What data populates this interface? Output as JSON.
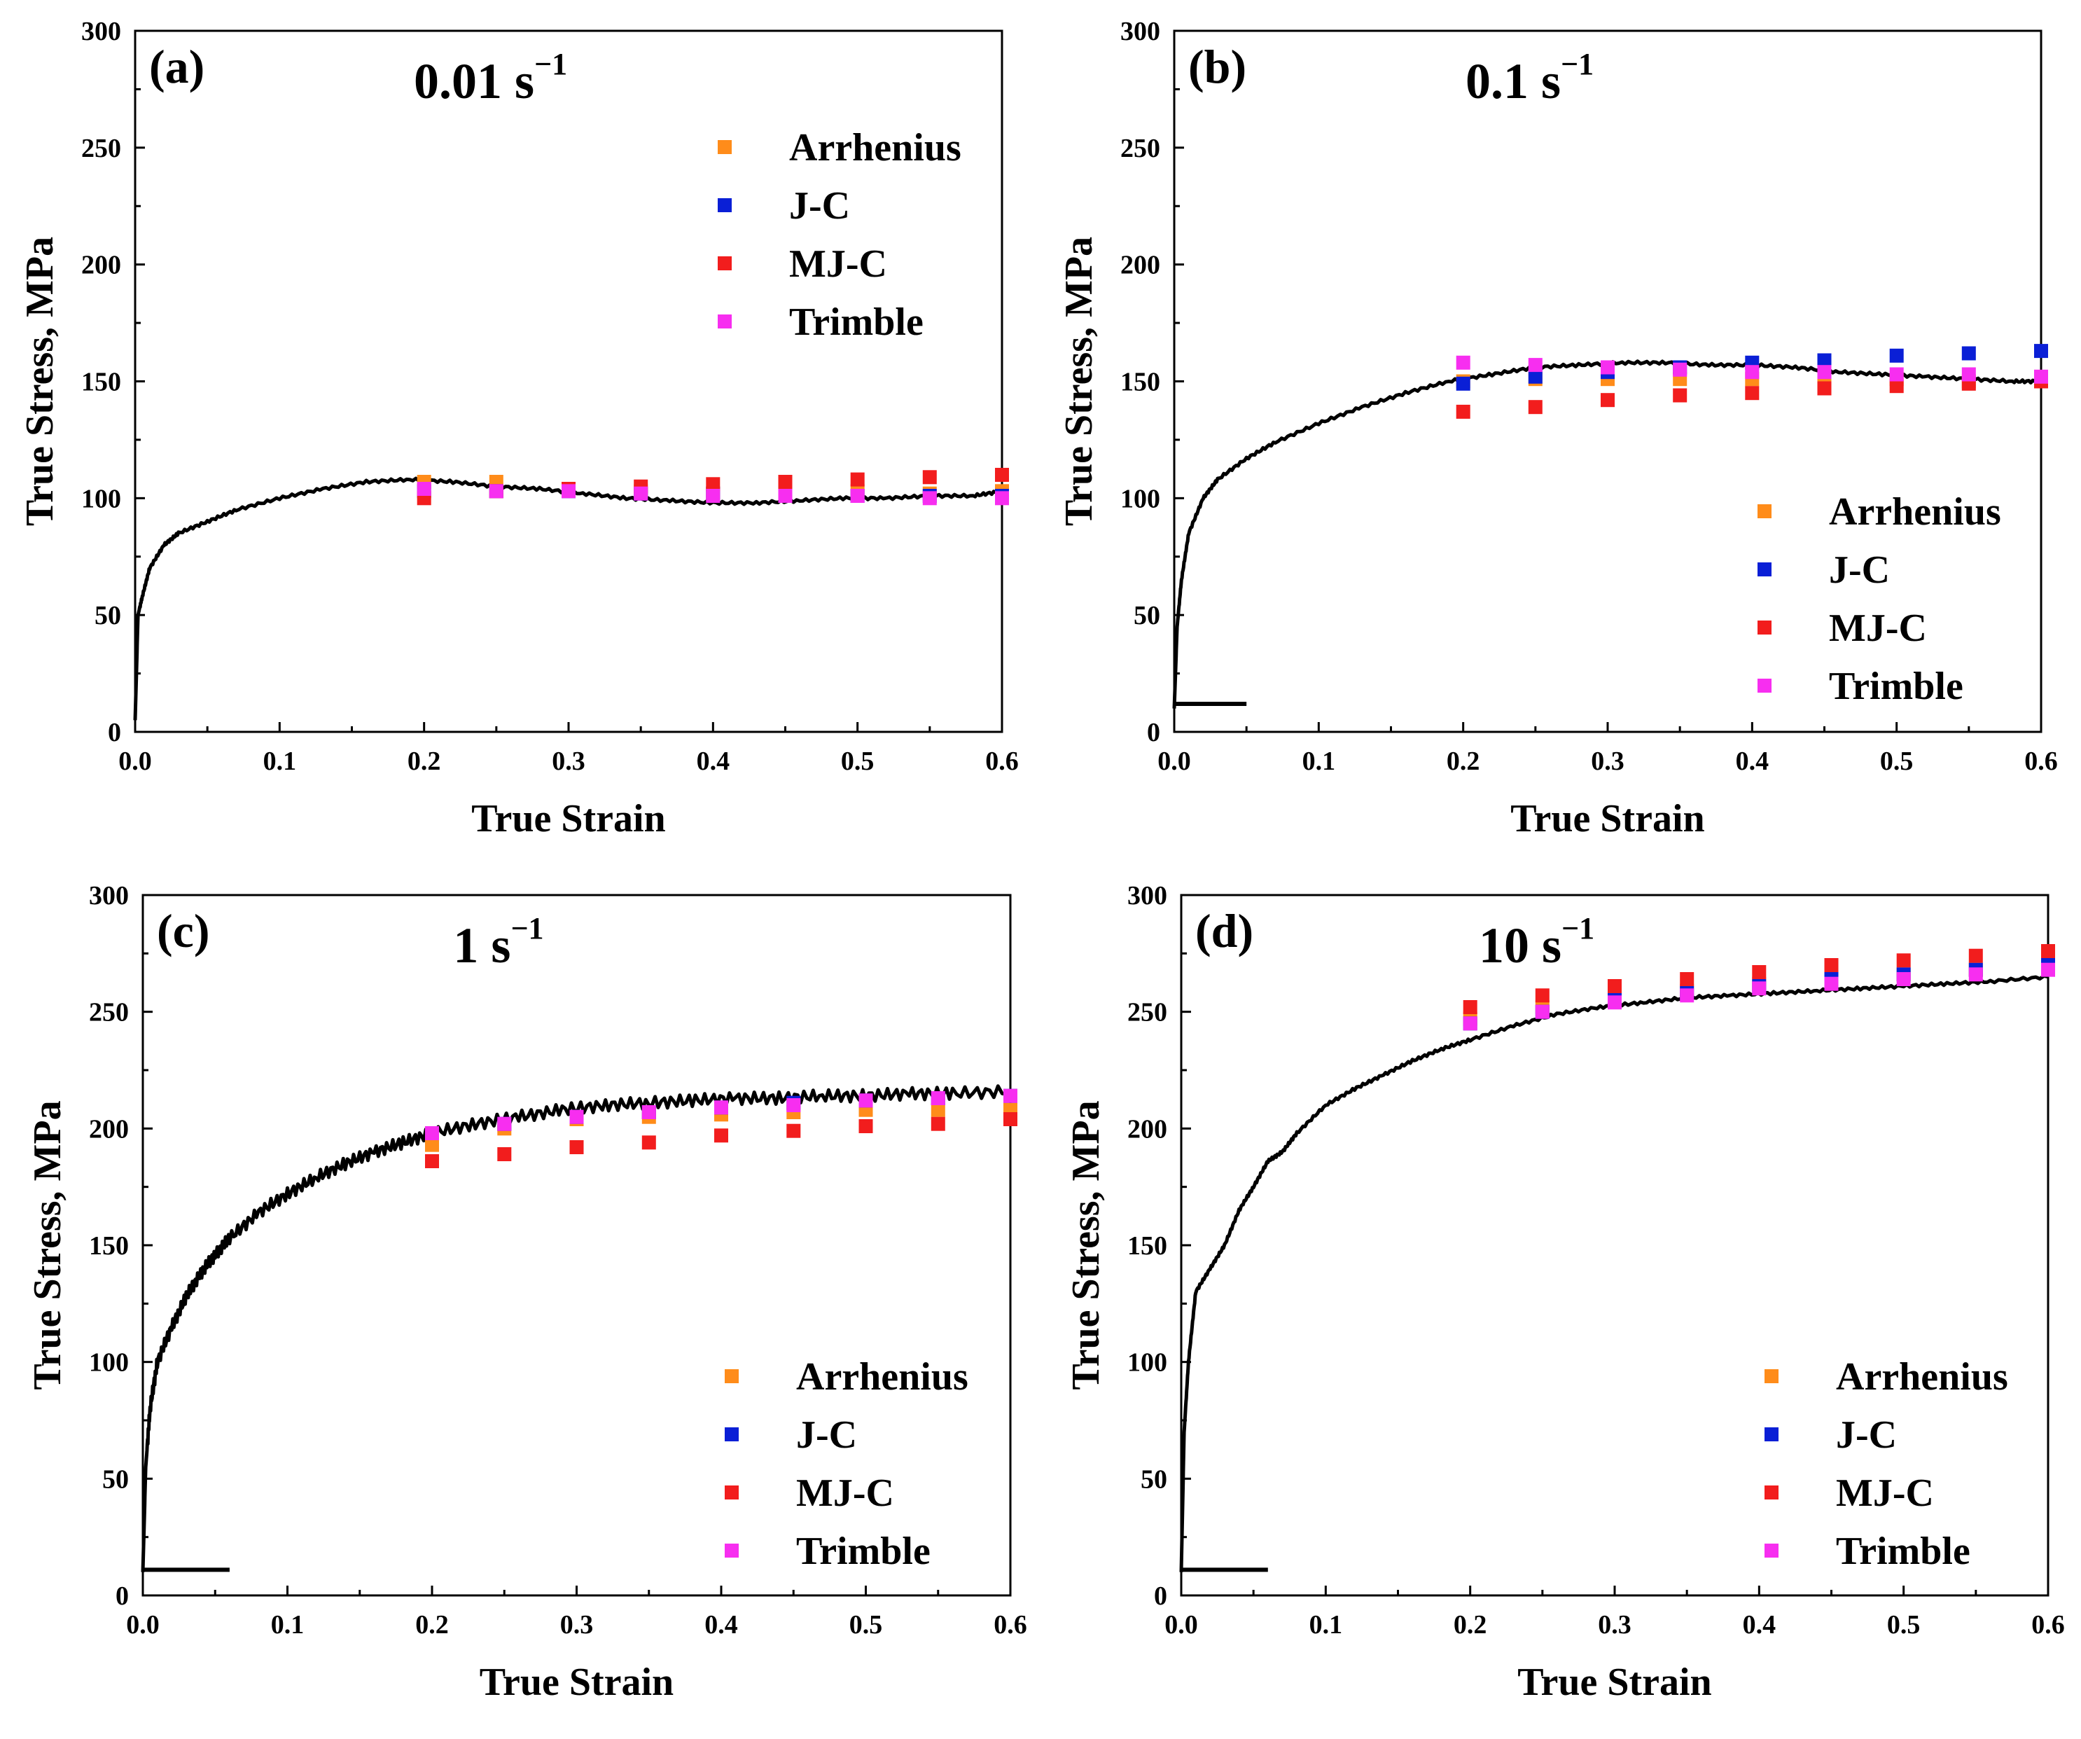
{
  "chart_data": [
    {
      "type": "scatter",
      "panel_label": "(a)",
      "title": "0.01 s",
      "title_superscript": "−1",
      "xlabel": "True Strain",
      "ylabel": "True Stress, MPa",
      "xlim": [
        0,
        0.6
      ],
      "ylim": [
        0,
        300
      ],
      "x_ticks": [
        "0.0",
        "0.1",
        "0.2",
        "0.3",
        "0.4",
        "0.5",
        "0.6"
      ],
      "y_ticks": [
        "0",
        "50",
        "100",
        "150",
        "200",
        "250",
        "300"
      ],
      "legend_position": "top-right",
      "experimental_curve": {
        "x": [
          0,
          0.002,
          0.005,
          0.01,
          0.02,
          0.03,
          0.05,
          0.07,
          0.1,
          0.13,
          0.16,
          0.19,
          0.22,
          0.25,
          0.28,
          0.31,
          0.34,
          0.37,
          0.4,
          0.43,
          0.46,
          0.49,
          0.52,
          0.55,
          0.58,
          0.6
        ],
        "y": [
          5,
          50,
          58,
          70,
          80,
          85,
          90,
          95,
          100,
          104,
          107,
          108,
          107,
          105,
          104,
          102,
          100,
          99,
          98,
          98,
          99,
          100,
          100,
          101,
          101,
          103
        ]
      },
      "series": [
        {
          "name": "Arrhenius",
          "color": "#ff8c1a",
          "x": [
            0.2,
            0.25,
            0.3,
            0.35,
            0.4,
            0.45,
            0.5,
            0.55,
            0.6
          ],
          "y": [
            107,
            107,
            104,
            103,
            102,
            102,
            103,
            102,
            103
          ]
        },
        {
          "name": "J-C",
          "color": "#0a1fd6",
          "x": [
            0.2,
            0.25,
            0.3,
            0.35,
            0.4,
            0.45,
            0.5,
            0.55,
            0.6
          ],
          "y": [
            103,
            103,
            103,
            102,
            102,
            101,
            101,
            101,
            101
          ]
        },
        {
          "name": "MJ-C",
          "color": "#f21d1d",
          "x": [
            0.2,
            0.25,
            0.3,
            0.35,
            0.4,
            0.45,
            0.5,
            0.55,
            0.6
          ],
          "y": [
            100,
            103,
            104,
            105,
            106,
            107,
            108,
            109,
            110
          ]
        },
        {
          "name": "Trimble",
          "color": "#f72ef0",
          "x": [
            0.2,
            0.25,
            0.3,
            0.35,
            0.4,
            0.45,
            0.5,
            0.55,
            0.6
          ],
          "y": [
            104,
            103,
            103,
            102,
            101,
            101,
            101,
            100,
            100
          ]
        }
      ]
    },
    {
      "type": "scatter",
      "panel_label": "(b)",
      "title": "0.1 s",
      "title_superscript": "−1",
      "xlabel": "True Strain",
      "ylabel": "True Stress, MPa",
      "xlim": [
        0,
        0.6
      ],
      "ylim": [
        0,
        300
      ],
      "x_ticks": [
        "0.0",
        "0.1",
        "0.2",
        "0.3",
        "0.4",
        "0.5",
        "0.6"
      ],
      "y_ticks": [
        "0",
        "50",
        "100",
        "150",
        "200",
        "250",
        "300"
      ],
      "legend_position": "bottom-right",
      "experimental_curve": {
        "x": [
          0,
          0.002,
          0.005,
          0.01,
          0.02,
          0.03,
          0.05,
          0.07,
          0.1,
          0.13,
          0.16,
          0.19,
          0.22,
          0.25,
          0.28,
          0.31,
          0.34,
          0.37,
          0.4,
          0.43,
          0.46,
          0.49,
          0.52,
          0.55,
          0.58,
          0.6
        ],
        "y": [
          10,
          45,
          65,
          85,
          100,
          108,
          117,
          124,
          132,
          139,
          145,
          150,
          153,
          156,
          157,
          158,
          158,
          157,
          157,
          156,
          154,
          153,
          152,
          151,
          150,
          150
        ]
      },
      "baseline_segment": {
        "x": [
          0,
          0.05
        ],
        "y": [
          12,
          12
        ]
      },
      "series": [
        {
          "name": "Arrhenius",
          "color": "#ff8c1a",
          "x": [
            0.2,
            0.25,
            0.3,
            0.35,
            0.4,
            0.45,
            0.5,
            0.55,
            0.6
          ],
          "y": [
            150,
            151,
            151,
            151,
            151,
            151,
            151,
            150,
            150
          ]
        },
        {
          "name": "J-C",
          "color": "#0a1fd6",
          "x": [
            0.2,
            0.25,
            0.3,
            0.35,
            0.4,
            0.45,
            0.5,
            0.55,
            0.6
          ],
          "y": [
            149,
            152,
            154,
            156,
            158,
            159,
            161,
            162,
            163
          ]
        },
        {
          "name": "MJ-C",
          "color": "#f21d1d",
          "x": [
            0.2,
            0.25,
            0.3,
            0.35,
            0.4,
            0.45,
            0.5,
            0.55,
            0.6
          ],
          "y": [
            137,
            139,
            142,
            144,
            145,
            147,
            148,
            149,
            150
          ]
        },
        {
          "name": "Trimble",
          "color": "#f72ef0",
          "x": [
            0.2,
            0.25,
            0.3,
            0.35,
            0.4,
            0.45,
            0.5,
            0.55,
            0.6
          ],
          "y": [
            158,
            157,
            156,
            155,
            154,
            154,
            153,
            153,
            152
          ]
        }
      ]
    },
    {
      "type": "scatter",
      "panel_label": "(c)",
      "title": "1 s",
      "title_superscript": "−1",
      "xlabel": "True Strain",
      "ylabel": "True Stress, MPa",
      "xlim": [
        0,
        0.6
      ],
      "ylim": [
        0,
        300
      ],
      "x_ticks": [
        "0.0",
        "0.1",
        "0.2",
        "0.3",
        "0.4",
        "0.5",
        "0.6"
      ],
      "y_ticks": [
        "0",
        "50",
        "100",
        "150",
        "200",
        "250",
        "300"
      ],
      "legend_position": "bottom-right",
      "experimental_curve": {
        "x": [
          0,
          0.002,
          0.005,
          0.01,
          0.02,
          0.03,
          0.04,
          0.05,
          0.06,
          0.08,
          0.1,
          0.12,
          0.14,
          0.16,
          0.18,
          0.2,
          0.23,
          0.26,
          0.29,
          0.32,
          0.35,
          0.38,
          0.41,
          0.44,
          0.47,
          0.5,
          0.53,
          0.56,
          0.6
        ],
        "y": [
          10,
          55,
          80,
          100,
          115,
          128,
          138,
          146,
          153,
          164,
          172,
          179,
          185,
          190,
          194,
          198,
          202,
          205,
          208,
          210,
          211,
          212,
          213,
          213,
          214,
          214,
          215,
          215,
          216
        ]
      },
      "baseline_segment": {
        "x": [
          0,
          0.06
        ],
        "y": [
          11,
          11
        ]
      },
      "series": [
        {
          "name": "Arrhenius",
          "color": "#ff8c1a",
          "x": [
            0.2,
            0.25,
            0.3,
            0.35,
            0.4,
            0.45,
            0.5,
            0.55,
            0.6
          ],
          "y": [
            193,
            200,
            204,
            205,
            206,
            207,
            208,
            208,
            208
          ]
        },
        {
          "name": "J-C",
          "color": "#0a1fd6",
          "x": [
            0.2,
            0.25,
            0.3,
            0.35,
            0.4,
            0.45,
            0.5,
            0.55,
            0.6
          ],
          "y": [
            198,
            202,
            205,
            207,
            209,
            211,
            212,
            213,
            214
          ]
        },
        {
          "name": "MJ-C",
          "color": "#f21d1d",
          "x": [
            0.2,
            0.25,
            0.3,
            0.35,
            0.4,
            0.45,
            0.5,
            0.55,
            0.6
          ],
          "y": [
            186,
            189,
            192,
            194,
            197,
            199,
            201,
            202,
            204
          ]
        },
        {
          "name": "Trimble",
          "color": "#f72ef0",
          "x": [
            0.2,
            0.25,
            0.3,
            0.35,
            0.4,
            0.45,
            0.5,
            0.55,
            0.6
          ],
          "y": [
            198,
            202,
            205,
            207,
            209,
            210,
            212,
            213,
            214
          ]
        }
      ]
    },
    {
      "type": "scatter",
      "panel_label": "(d)",
      "title": "10 s",
      "title_superscript": "−1",
      "xlabel": "True Strain",
      "ylabel": "True Stress, MPa",
      "xlim": [
        0,
        0.6
      ],
      "ylim": [
        0,
        300
      ],
      "x_ticks": [
        "0.0",
        "0.1",
        "0.2",
        "0.3",
        "0.4",
        "0.5",
        "0.6"
      ],
      "y_ticks": [
        "0",
        "50",
        "100",
        "150",
        "200",
        "250",
        "300"
      ],
      "legend_position": "bottom-right",
      "experimental_curve": {
        "x": [
          0,
          0.002,
          0.005,
          0.01,
          0.02,
          0.03,
          0.04,
          0.05,
          0.06,
          0.07,
          0.08,
          0.1,
          0.12,
          0.14,
          0.16,
          0.18,
          0.2,
          0.23,
          0.26,
          0.29,
          0.32,
          0.35,
          0.38,
          0.41,
          0.44,
          0.47,
          0.5,
          0.53,
          0.56,
          0.6
        ],
        "y": [
          10,
          70,
          100,
          130,
          140,
          150,
          165,
          175,
          186,
          190,
          198,
          210,
          217,
          223,
          229,
          234,
          238,
          244,
          249,
          252,
          254,
          256,
          257,
          258,
          259,
          260,
          261,
          262,
          263,
          265
        ]
      },
      "baseline_segment": {
        "x": [
          0,
          0.06
        ],
        "y": [
          11,
          11
        ]
      },
      "series": [
        {
          "name": "Arrhenius",
          "color": "#ff8c1a",
          "x": [
            0.2,
            0.25,
            0.3,
            0.35,
            0.4,
            0.45,
            0.5,
            0.55,
            0.6
          ],
          "y": [
            247,
            252,
            256,
            259,
            262,
            264,
            266,
            268,
            270
          ]
        },
        {
          "name": "J-C",
          "color": "#0a1fd6",
          "x": [
            0.2,
            0.25,
            0.3,
            0.35,
            0.4,
            0.45,
            0.5,
            0.55,
            0.6
          ],
          "y": [
            245,
            250,
            255,
            258,
            261,
            264,
            266,
            268,
            270
          ]
        },
        {
          "name": "MJ-C",
          "color": "#f21d1d",
          "x": [
            0.2,
            0.25,
            0.3,
            0.35,
            0.4,
            0.45,
            0.5,
            0.55,
            0.6
          ],
          "y": [
            252,
            257,
            261,
            264,
            267,
            270,
            272,
            274,
            276
          ]
        },
        {
          "name": "Trimble",
          "color": "#f72ef0",
          "x": [
            0.2,
            0.25,
            0.3,
            0.35,
            0.4,
            0.45,
            0.5,
            0.55,
            0.6
          ],
          "y": [
            245,
            250,
            254,
            257,
            260,
            262,
            264,
            266,
            268
          ]
        }
      ]
    }
  ]
}
